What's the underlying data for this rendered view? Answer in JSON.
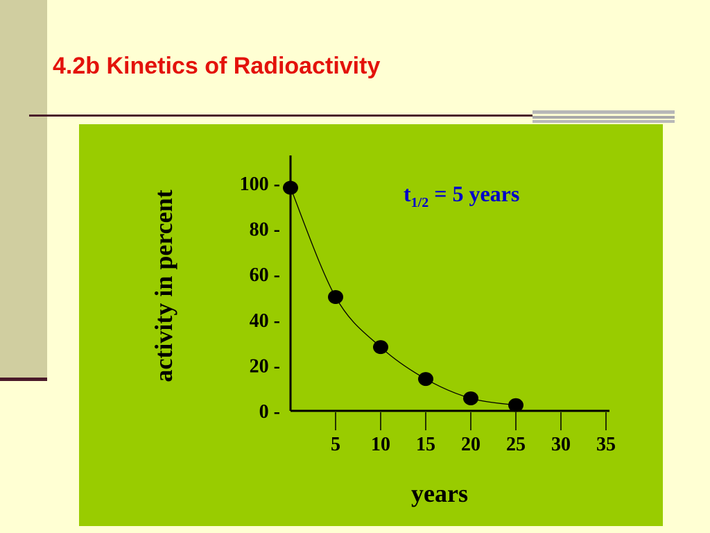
{
  "slide": {
    "title": "4.2b Kinetics of Radioactivity"
  },
  "chart_data": {
    "type": "scatter",
    "ylabel": "activity in  percent",
    "xlabel": "years",
    "annotation": {
      "prefix": "t",
      "subscript": "1/2",
      "suffix": " = 5 years"
    },
    "annotation_color": "#0000CC",
    "x_ticks": [
      5,
      10,
      15,
      20,
      25,
      30,
      35
    ],
    "y_ticks": [
      0,
      20,
      40,
      60,
      80,
      100
    ],
    "y_tick_suffix": " -",
    "xlim": [
      0,
      35
    ],
    "ylim": [
      0,
      100
    ],
    "points": [
      {
        "x": 0,
        "y": 98
      },
      {
        "x": 5,
        "y": 50
      },
      {
        "x": 10,
        "y": 28
      },
      {
        "x": 15,
        "y": 14
      },
      {
        "x": 20,
        "y": 5.5
      },
      {
        "x": 25,
        "y": 2.5
      }
    ],
    "grid": false,
    "panel_color": "#99CC00"
  }
}
